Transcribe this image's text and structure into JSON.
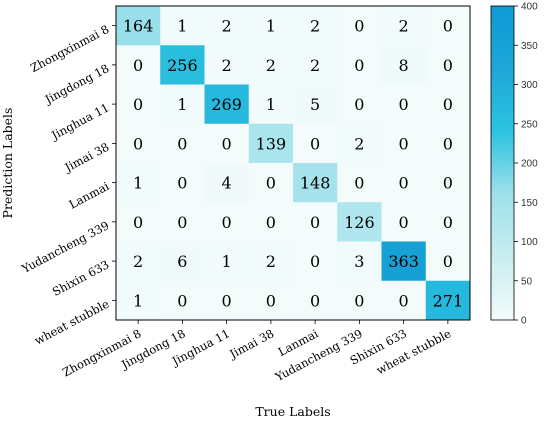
{
  "chart_data": {
    "type": "heatmap",
    "title": "",
    "xlabel": "True Labels",
    "ylabel": "Prediction Labels",
    "x_categories": [
      "Zhongxinmai 8",
      "Jingdong 18",
      "Jinghua 11",
      "Jimai 38",
      "Lanmai",
      "Yudancheng 339",
      "Shixin 633",
      "wheat stubble"
    ],
    "y_categories": [
      "Zhongxinmai 8",
      "Jingdong 18",
      "Jinghua 11",
      "Jimai 38",
      "Lanmai",
      "Yudancheng 339",
      "Shixin 633",
      "wheat stubble"
    ],
    "matrix": [
      [
        164,
        1,
        2,
        1,
        2,
        0,
        2,
        0
      ],
      [
        0,
        256,
        2,
        2,
        2,
        0,
        8,
        0
      ],
      [
        0,
        1,
        269,
        1,
        5,
        0,
        0,
        0
      ],
      [
        0,
        0,
        0,
        139,
        0,
        2,
        0,
        0
      ],
      [
        1,
        0,
        4,
        0,
        148,
        0,
        0,
        0
      ],
      [
        0,
        0,
        0,
        0,
        0,
        126,
        0,
        0
      ],
      [
        2,
        6,
        1,
        2,
        0,
        3,
        363,
        0
      ],
      [
        1,
        0,
        0,
        0,
        0,
        0,
        0,
        271
      ]
    ],
    "colorbar": {
      "min": 0,
      "max": 400,
      "ticks": [
        0,
        50,
        100,
        150,
        200,
        250,
        300,
        350,
        400
      ],
      "colors": [
        "#f3fbfb",
        "#c8eef0",
        "#9fe0ea",
        "#2cc3e0",
        "#1ea6d8",
        "#0e9ad4"
      ]
    },
    "legend": "right"
  }
}
